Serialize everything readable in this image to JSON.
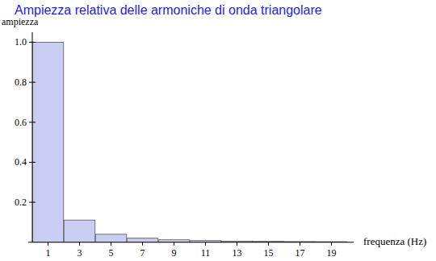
{
  "chart_data": {
    "type": "bar",
    "title": "Ampiezza relativa delle armoniche di onda triangolare",
    "y_label": "ampiezza",
    "x_label": "frequenza (Hz)",
    "categories": [
      "1",
      "3",
      "5",
      "7",
      "9",
      "11",
      "13",
      "15",
      "17",
      "19"
    ],
    "values": [
      1,
      0.111,
      0.04,
      0.0204,
      0.0123,
      0.0083,
      0.0059,
      0.0044,
      0.0035,
      0.0028
    ],
    "color": "#c9cdf1",
    "ylim": [
      0,
      1.05
    ],
    "yticks": [
      0.2,
      0.4,
      0.6,
      0.8,
      {
        "value": 1,
        "label": "1.0"
      }
    ],
    "grid": false
  }
}
